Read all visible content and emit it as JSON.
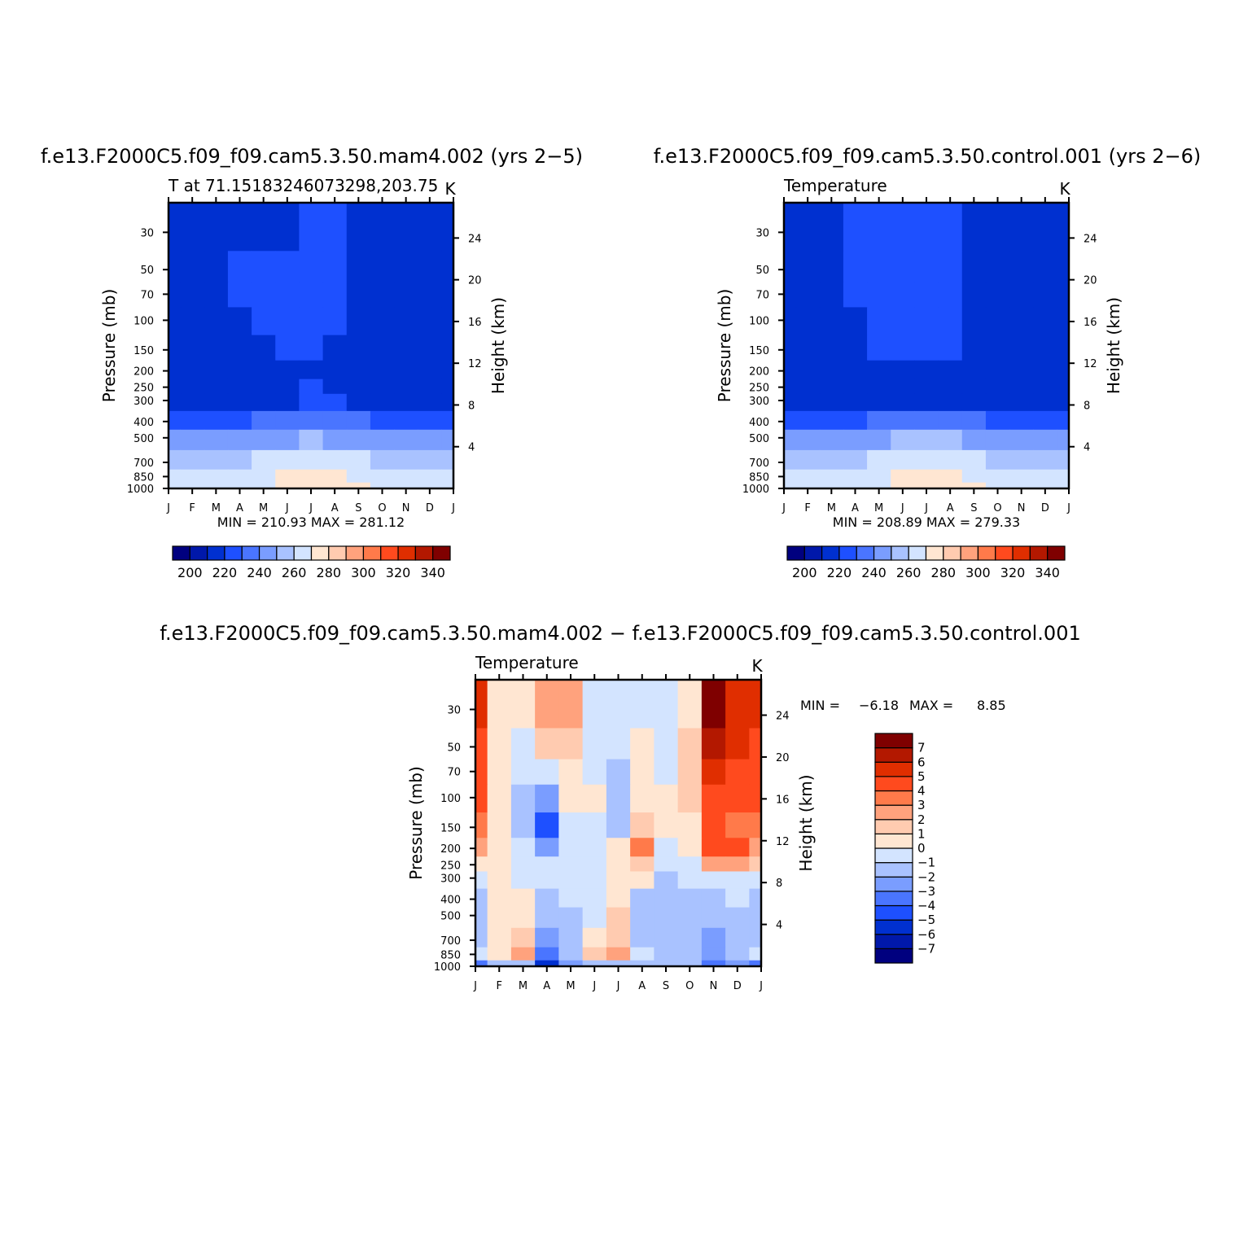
{
  "months": [
    "J",
    "F",
    "M",
    "A",
    "M",
    "J",
    "J",
    "A",
    "S",
    "O",
    "N",
    "D",
    "J"
  ],
  "pressure_ticks": [
    30,
    50,
    70,
    100,
    150,
    200,
    250,
    300,
    400,
    500,
    700,
    850,
    1000
  ],
  "height_ticks": [
    4,
    8,
    12,
    16,
    20,
    24
  ],
  "ylabel": "Pressure (mb)",
  "y2label": "Height (km)",
  "unit": "K",
  "chart_data": [
    {
      "type": "heatmap",
      "id": "p1",
      "title": "f.e13.F2000C5.f09_f09.cam5.3.50.mam4.002 (yrs 2−5)",
      "subtitle": "T at 71.15183246073298,203.75",
      "units": "K",
      "stats": "MIN = 210.93 MAX = 281.12",
      "min": 210.93,
      "max": 281.12,
      "x": [
        "J",
        "F",
        "M",
        "A",
        "M",
        "J",
        "J",
        "A",
        "S",
        "O",
        "N",
        "D",
        "J"
      ],
      "y_pressure_mb": [
        30,
        50,
        70,
        100,
        150,
        200,
        250,
        300,
        400,
        500,
        700,
        850,
        1000
      ],
      "levels": [
        200,
        210,
        220,
        230,
        240,
        250,
        260,
        270,
        280,
        290,
        300,
        310,
        320,
        330,
        340
      ],
      "level_labels": [
        "200",
        "220",
        "240",
        "260",
        "280",
        "300",
        "320",
        "340"
      ],
      "colors": [
        "#00007f",
        "#0018aa",
        "#0030d0",
        "#1e50ff",
        "#4a75ff",
        "#7a9dff",
        "#a9c2ff",
        "#d3e4ff",
        "#ffe6d2",
        "#ffcbb0",
        "#ffa27d",
        "#ff7a4a",
        "#ff4a1e",
        "#e02e00",
        "#b31800",
        "#7f0000"
      ],
      "values": [
        [
          218,
          218,
          218,
          218,
          218,
          219,
          221,
          220,
          218,
          218,
          218,
          218,
          218
        ],
        [
          219,
          219,
          219,
          220,
          220,
          221,
          221,
          221,
          219,
          219,
          219,
          219,
          219
        ],
        [
          219,
          219,
          219,
          220,
          220,
          221,
          221,
          221,
          219,
          219,
          219,
          219,
          219
        ],
        [
          218,
          218,
          219,
          219,
          221,
          222,
          222,
          221,
          219,
          219,
          218,
          218,
          218
        ],
        [
          217,
          217,
          218,
          218,
          219,
          221,
          221,
          219,
          218,
          217,
          217,
          217,
          217
        ],
        [
          217,
          217,
          217,
          218,
          218,
          219,
          219,
          218,
          218,
          217,
          217,
          217,
          217
        ],
        [
          218,
          218,
          218,
          218,
          219,
          219,
          220,
          219,
          218,
          218,
          218,
          218,
          218
        ],
        [
          219,
          219,
          219,
          219,
          219,
          219,
          221,
          220,
          219,
          219,
          219,
          219,
          219
        ],
        [
          227,
          227,
          227,
          228,
          231,
          232,
          234,
          232,
          230,
          228,
          227,
          227,
          227
        ],
        [
          242,
          242,
          242,
          243,
          247,
          249,
          251,
          249,
          246,
          243,
          242,
          242,
          242
        ],
        [
          256,
          256,
          256,
          257,
          262,
          266,
          268,
          266,
          262,
          258,
          256,
          256,
          256
        ],
        [
          261,
          261,
          261,
          262,
          267,
          273,
          276,
          275,
          268,
          263,
          261,
          261,
          261
        ],
        [
          262,
          262,
          262,
          263,
          268,
          275,
          278,
          277,
          270,
          265,
          262,
          262,
          262
        ]
      ]
    },
    {
      "type": "heatmap",
      "id": "p2",
      "title": "f.e13.F2000C5.f09_f09.cam5.3.50.control.001 (yrs 2−6)",
      "subtitle": "Temperature",
      "units": "K",
      "stats": "MIN = 208.89 MAX = 279.33",
      "min": 208.89,
      "max": 279.33,
      "x": [
        "J",
        "F",
        "M",
        "A",
        "M",
        "J",
        "J",
        "A",
        "S",
        "O",
        "N",
        "D",
        "J"
      ],
      "y_pressure_mb": [
        30,
        50,
        70,
        100,
        150,
        200,
        250,
        300,
        400,
        500,
        700,
        850,
        1000
      ],
      "levels": [
        200,
        210,
        220,
        230,
        240,
        250,
        260,
        270,
        280,
        290,
        300,
        310,
        320,
        330,
        340
      ],
      "level_labels": [
        "200",
        "220",
        "240",
        "260",
        "280",
        "300",
        "320",
        "340"
      ],
      "colors": [
        "#00007f",
        "#0018aa",
        "#0030d0",
        "#1e50ff",
        "#4a75ff",
        "#7a9dff",
        "#a9c2ff",
        "#d3e4ff",
        "#ffe6d2",
        "#ffcbb0",
        "#ffa27d",
        "#ff7a4a",
        "#ff4a1e",
        "#e02e00",
        "#b31800",
        "#7f0000"
      ],
      "values": [
        [
          214,
          218,
          218,
          222,
          223,
          224,
          223,
          222,
          218,
          216,
          214,
          215,
          214
        ],
        [
          215,
          218,
          219,
          222,
          223,
          224,
          224,
          223,
          219,
          217,
          215,
          216,
          215
        ],
        [
          216,
          218,
          219,
          221,
          223,
          224,
          224,
          223,
          219,
          217,
          215,
          216,
          216
        ],
        [
          216,
          217,
          218,
          219,
          222,
          223,
          223,
          222,
          219,
          216,
          215,
          215,
          216
        ],
        [
          215,
          216,
          216,
          218,
          220,
          221,
          221,
          220,
          218,
          216,
          214,
          214,
          215
        ],
        [
          215,
          216,
          216,
          217,
          218,
          219,
          219,
          218,
          217,
          215,
          213,
          212,
          215
        ],
        [
          216,
          216,
          216,
          217,
          218,
          219,
          219,
          218,
          217,
          216,
          215,
          215,
          216
        ],
        [
          218,
          218,
          218,
          219,
          219,
          219,
          219,
          219,
          218,
          218,
          218,
          218,
          218
        ],
        [
          226,
          226,
          227,
          228,
          231,
          233,
          235,
          233,
          230,
          228,
          226,
          226,
          226
        ],
        [
          241,
          241,
          242,
          244,
          248,
          250,
          251,
          250,
          247,
          244,
          242,
          241,
          241
        ],
        [
          255,
          255,
          256,
          258,
          263,
          266,
          267,
          266,
          262,
          258,
          256,
          255,
          255
        ],
        [
          260,
          260,
          261,
          263,
          268,
          272,
          274,
          273,
          269,
          264,
          261,
          260,
          260
        ],
        [
          261,
          261,
          262,
          264,
          269,
          274,
          276,
          275,
          271,
          265,
          262,
          261,
          261
        ]
      ]
    },
    {
      "type": "heatmap",
      "id": "p3",
      "title": "f.e13.F2000C5.f09_f09.cam5.3.50.mam4.002 − f.e13.F2000C5.f09_f09.cam5.3.50.control.001",
      "subtitle": "Temperature",
      "units": "K",
      "stats_label": "MIN =",
      "stats_min": "−6.18",
      "stats_max_label": "MAX =",
      "stats_max": "8.85",
      "min": -6.18,
      "max": 8.85,
      "x": [
        "J",
        "F",
        "M",
        "A",
        "M",
        "J",
        "J",
        "A",
        "S",
        "O",
        "N",
        "D",
        "J"
      ],
      "y_pressure_mb": [
        30,
        50,
        70,
        100,
        150,
        200,
        250,
        300,
        400,
        500,
        700,
        850,
        1000
      ],
      "levels": [
        -7,
        -6,
        -5,
        -4,
        -3,
        -2,
        -1,
        0,
        1,
        2,
        3,
        4,
        5,
        6,
        7
      ],
      "level_labels": [
        "−7",
        "−6",
        "−5",
        "−4",
        "−3",
        "−2",
        "−1",
        "0",
        "1",
        "2",
        "3",
        "4",
        "5",
        "6",
        "7"
      ],
      "colors": [
        "#00007f",
        "#0018aa",
        "#0030d0",
        "#1e50ff",
        "#4a75ff",
        "#7a9dff",
        "#a9c2ff",
        "#d3e4ff",
        "#ffe6d2",
        "#ffcbb0",
        "#ffa27d",
        "#ff7a4a",
        "#ff4a1e",
        "#e02e00",
        "#b31800",
        "#7f0000"
      ],
      "values": [
        [
          5.5,
          0.5,
          0.5,
          2.5,
          2.0,
          -0.5,
          -0.5,
          -0.5,
          -0.5,
          0.5,
          7.5,
          5.5,
          5.5
        ],
        [
          4.5,
          0.5,
          -0.5,
          1.5,
          1.5,
          -0.5,
          -0.5,
          0.5,
          -0.5,
          1.0,
          6.5,
          5.0,
          4.5
        ],
        [
          4.0,
          0.5,
          -1.0,
          -1.0,
          0.5,
          -0.5,
          -1.5,
          0.5,
          -0.5,
          1.0,
          5.5,
          4.5,
          4.0
        ],
        [
          4.0,
          0.5,
          -1.5,
          -2.5,
          0.5,
          0.5,
          -1.5,
          0.5,
          0.5,
          1.0,
          4.5,
          4.0,
          4.0
        ],
        [
          3.5,
          0.5,
          -1.5,
          -4.5,
          -1.0,
          -0.5,
          -1.5,
          1.5,
          0.5,
          0.5,
          4.5,
          3.5,
          3.5
        ],
        [
          2.5,
          0.5,
          -1.0,
          -3.0,
          -1.0,
          -0.5,
          0.5,
          3.0,
          -0.5,
          0.5,
          4.0,
          4.0,
          2.5
        ],
        [
          0.5,
          0.5,
          -0.5,
          -1.0,
          -0.5,
          -0.5,
          0.5,
          1.0,
          -0.5,
          -0.5,
          2.0,
          2.0,
          1.0
        ],
        [
          -0.5,
          0.5,
          -0.5,
          -1.0,
          -0.5,
          -0.5,
          0.5,
          0.5,
          -1.5,
          -0.5,
          -1.0,
          -1.0,
          -0.5
        ],
        [
          -1.5,
          0.5,
          0.5,
          -1.5,
          -1.0,
          -0.5,
          0.5,
          -1.5,
          -1.5,
          -1.5,
          -1.5,
          -0.5,
          -1.5
        ],
        [
          -1.5,
          0.5,
          0.5,
          -2.0,
          -1.5,
          -0.5,
          1.0,
          -1.5,
          -1.5,
          -2.0,
          -2.0,
          -1.5,
          -1.5
        ],
        [
          -1.5,
          0.5,
          1.5,
          -3.0,
          -1.5,
          0.5,
          1.5,
          -1.5,
          -1.5,
          -1.5,
          -2.5,
          -1.5,
          -1.5
        ],
        [
          -1.0,
          0.5,
          2.5,
          -4.0,
          -1.5,
          1.0,
          2.5,
          -1.0,
          -1.5,
          -1.5,
          -3.0,
          -1.5,
          -1.0
        ],
        [
          -3.5,
          -2.0,
          -2.0,
          -6.0,
          -3.0,
          -2.0,
          -2.0,
          -2.0,
          -2.0,
          -2.0,
          -4.0,
          -2.5,
          -3.5
        ]
      ]
    }
  ]
}
